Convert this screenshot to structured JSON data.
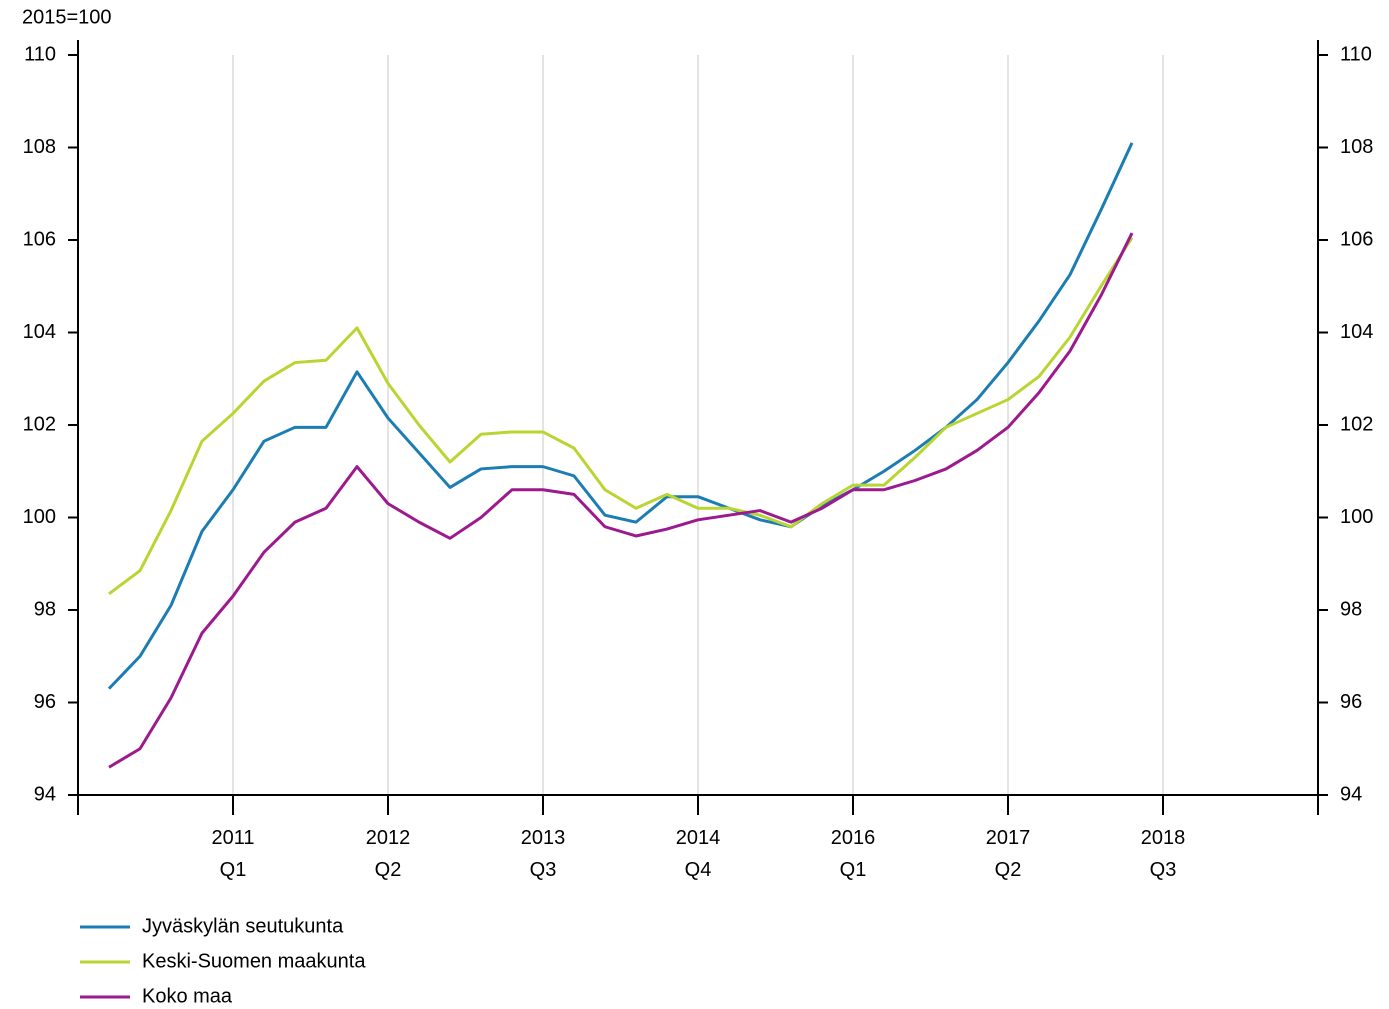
{
  "chart_data": {
    "type": "line",
    "y_unit_label": "2015=100",
    "categories": [
      null,
      null,
      null,
      null,
      null,
      "2011\nQ1",
      null,
      null,
      null,
      null,
      "2012\nQ2",
      null,
      null,
      null,
      null,
      "2013\nQ3",
      null,
      null,
      null,
      null,
      "2014\nQ4",
      null,
      null,
      null,
      null,
      "2016\nQ1",
      null,
      null,
      null,
      null,
      "2017\nQ2",
      null,
      null,
      null,
      null,
      "2018\nQ3",
      null,
      null,
      null,
      null,
      null
    ],
    "series": [
      {
        "name": "Jyväskylän seutukunta",
        "color": "#1b7db3",
        "values": [
          null,
          96.3,
          97.0,
          98.1,
          99.7,
          100.6,
          101.65,
          101.95,
          101.95,
          103.15,
          102.15,
          101.4,
          100.65,
          101.05,
          101.1,
          101.1,
          100.9,
          100.05,
          99.9,
          100.45,
          100.45,
          100.2,
          99.95,
          99.8,
          100.25,
          100.6,
          101.0,
          101.45,
          101.95,
          102.55,
          103.35,
          104.25,
          105.25,
          106.65,
          108.1,
          null,
          null,
          null,
          null,
          null,
          null
        ]
      },
      {
        "name": "Keski-Suomen maakunta",
        "color": "#b9d531",
        "values": [
          null,
          98.35,
          98.85,
          100.15,
          101.65,
          102.25,
          102.95,
          103.35,
          103.4,
          104.1,
          102.9,
          102.0,
          101.2,
          101.8,
          101.85,
          101.85,
          101.5,
          100.6,
          100.2,
          100.5,
          100.2,
          100.2,
          100.05,
          99.8,
          100.3,
          100.7,
          100.7,
          101.3,
          101.95,
          102.25,
          102.55,
          103.05,
          103.9,
          105.0,
          106.05,
          null,
          null,
          null,
          null,
          null,
          null
        ]
      },
      {
        "name": "Koko maa",
        "color": "#9c1a8e",
        "values": [
          null,
          94.6,
          95.0,
          96.1,
          97.5,
          98.3,
          99.25,
          99.9,
          100.2,
          101.1,
          100.3,
          99.9,
          99.55,
          100.0,
          100.6,
          100.6,
          100.5,
          99.8,
          99.6,
          99.75,
          99.95,
          100.05,
          100.15,
          99.9,
          100.2,
          100.6,
          100.6,
          100.8,
          101.05,
          101.45,
          101.95,
          102.7,
          103.6,
          104.8,
          106.15,
          null,
          null,
          null,
          null,
          null,
          null
        ]
      }
    ],
    "ylim": [
      94,
      110
    ],
    "yticks": [
      94,
      96,
      98,
      100,
      102,
      104,
      106,
      108,
      110
    ],
    "y2lim": [
      94,
      110
    ],
    "y2ticks": [
      94,
      96,
      98,
      100,
      102,
      104,
      106,
      108,
      110
    ],
    "grid": "x",
    "legend": "bottom-left"
  }
}
